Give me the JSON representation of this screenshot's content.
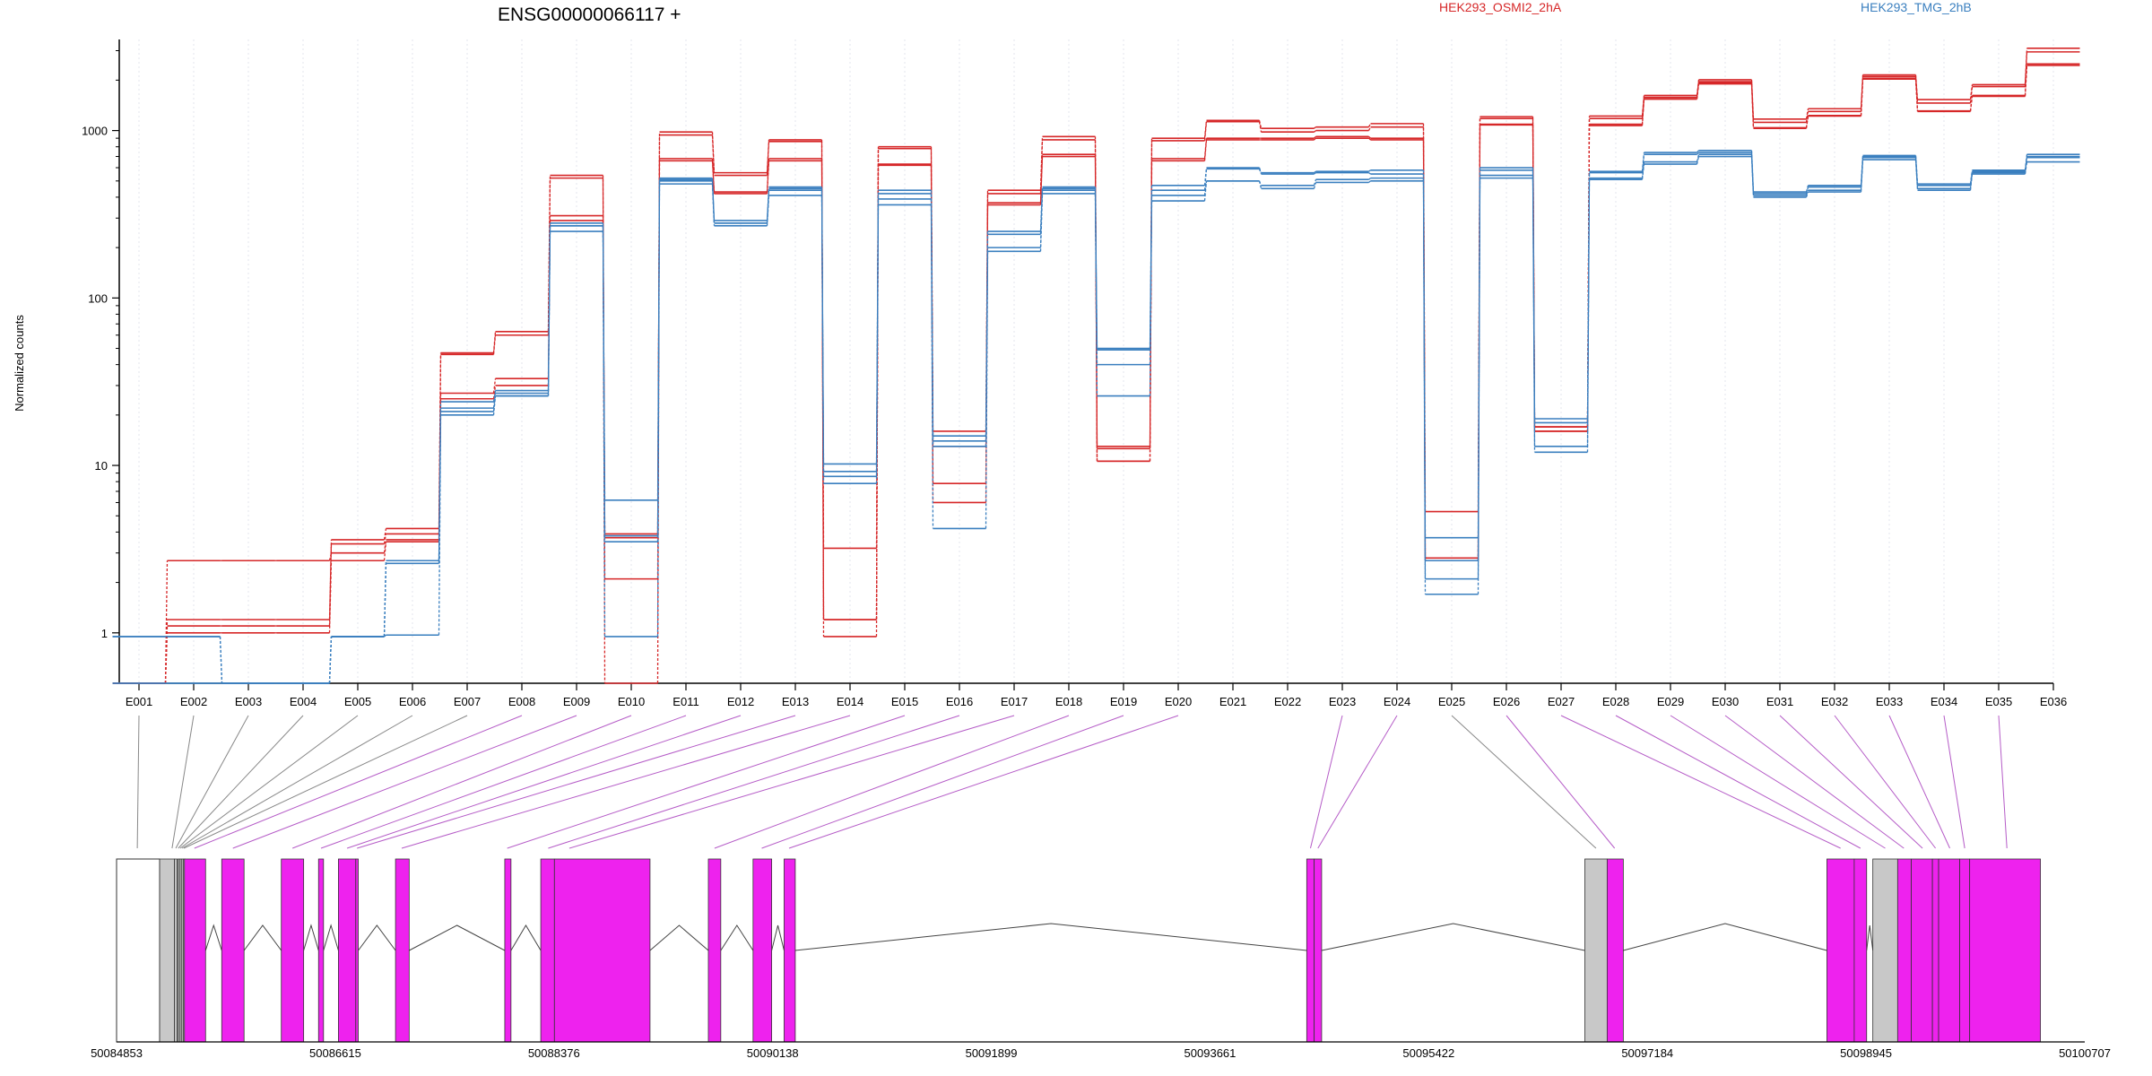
{
  "chart_data": {
    "type": "line",
    "title": "ENSG00000066117 +",
    "ylabel": "Normalized counts",
    "xlabel": "",
    "yscale": "log",
    "ylim": [
      0.5,
      3500
    ],
    "yticks": [
      1,
      10,
      100,
      1000
    ],
    "ytick_labels": [
      "1",
      "10",
      "100",
      "1000"
    ],
    "grid": "vertical dotted lines at each exon",
    "legend_placement": "top",
    "colors": {
      "HEK293_OSMI2_2hA": "#d62728",
      "HEK293_TMG_2hB": "#3a7fbf",
      "exon_counted": "#ee22ee",
      "exon_other": "#c8c8c8",
      "flank": "#ffffff"
    },
    "categories": [
      "E001",
      "E002",
      "E003",
      "E004",
      "E005",
      "E006",
      "E007",
      "E008",
      "E009",
      "E010",
      "E011",
      "E012",
      "E013",
      "E014",
      "E015",
      "E016",
      "E017",
      "E018",
      "E019",
      "E020",
      "E021",
      "E022",
      "E023",
      "E024",
      "E025",
      "E026",
      "E027",
      "E028",
      "E029",
      "E030",
      "E031",
      "E032",
      "E033",
      "E034",
      "E035",
      "E036"
    ],
    "series": [
      {
        "name": "HEK293_OSMI2_2hA",
        "group": "HEK293_OSMI2_2hA",
        "values": [
          0.5,
          1.1,
          1.1,
          1.1,
          3.6,
          4.2,
          47,
          63,
          540,
          0.5,
          980,
          560,
          880,
          1.2,
          800,
          16,
          440,
          920,
          13,
          900,
          1150,
          1030,
          1050,
          1100,
          5.3,
          1210,
          17,
          1220,
          1620,
          2010,
          1170,
          1350,
          2150,
          1530,
          1880,
          3100
        ]
      },
      {
        "name": "HEK293_OSMI2_2hA",
        "group": "HEK293_OSMI2_2hA",
        "values": [
          0.5,
          1.2,
          1.2,
          1.2,
          3.4,
          3.9,
          46,
          60,
          520,
          2.1,
          940,
          540,
          860,
          0.95,
          780,
          7.8,
          420,
          880,
          10.6,
          870,
          1130,
          980,
          1000,
          1050,
          2.7,
          1180,
          16,
          1180,
          1580,
          1960,
          1120,
          1300,
          2100,
          1460,
          1830,
          2950
        ]
      },
      {
        "name": "HEK293_OSMI2_2hA",
        "group": "HEK293_OSMI2_2hA",
        "values": [
          0.5,
          2.7,
          2.7,
          2.7,
          3.0,
          3.6,
          27,
          33,
          310,
          3.7,
          680,
          430,
          680,
          3.2,
          630,
          13,
          370,
          720,
          10.6,
          680,
          900,
          900,
          920,
          900,
          2.7,
          1090,
          17,
          1090,
          1550,
          1930,
          1040,
          1230,
          2050,
          1310,
          1620,
          2500
        ]
      },
      {
        "name": "HEK293_OSMI2_2hA",
        "group": "HEK293_OSMI2_2hA",
        "values": [
          0.5,
          1.0,
          1.0,
          1.0,
          2.7,
          3.5,
          25,
          30,
          290,
          3.9,
          660,
          420,
          660,
          1.2,
          620,
          6.0,
          360,
          700,
          12.6,
          660,
          880,
          880,
          900,
          880,
          2.8,
          1080,
          16,
          1070,
          1540,
          1900,
          1030,
          1220,
          2030,
          1300,
          1600,
          2450
        ]
      },
      {
        "name": "HEK293_TMG_2hB",
        "group": "HEK293_TMG_2hB",
        "values": [
          0.95,
          0.95,
          0.5,
          0.5,
          0.95,
          0.97,
          20,
          26,
          250,
          6.2,
          480,
          270,
          410,
          7.8,
          360,
          4.2,
          190,
          420,
          26,
          380,
          500,
          450,
          490,
          500,
          1.7,
          520,
          12,
          510,
          630,
          700,
          400,
          430,
          670,
          440,
          550,
          650
        ]
      },
      {
        "name": "HEK293_TMG_2hB",
        "group": "HEK293_TMG_2hB",
        "values": [
          0.5,
          0.5,
          0.5,
          0.5,
          0.95,
          2.7,
          22,
          27,
          270,
          0.95,
          500,
          290,
          440,
          8.6,
          390,
          13,
          200,
          440,
          40,
          410,
          500,
          470,
          510,
          520,
          2.7,
          540,
          13,
          520,
          650,
          720,
          410,
          440,
          690,
          450,
          560,
          690
        ]
      },
      {
        "name": "HEK293_TMG_2hB",
        "group": "HEK293_TMG_2hB",
        "values": [
          0.95,
          0.95,
          0.5,
          0.5,
          0.95,
          2.6,
          24,
          28,
          280,
          3.5,
          520,
          280,
          460,
          9.2,
          420,
          14,
          240,
          450,
          50,
          440,
          590,
          550,
          560,
          550,
          2.1,
          580,
          19,
          560,
          720,
          740,
          420,
          460,
          700,
          470,
          570,
          700
        ]
      },
      {
        "name": "HEK293_TMG_2hB",
        "group": "HEK293_TMG_2hB",
        "values": [
          0.5,
          0.5,
          0.5,
          0.5,
          0.95,
          2.7,
          21,
          26,
          270,
          3.8,
          510,
          280,
          450,
          10.2,
          440,
          15,
          250,
          460,
          49,
          470,
          600,
          560,
          570,
          580,
          3.7,
          600,
          18,
          570,
          740,
          760,
          430,
          470,
          710,
          480,
          580,
          720
        ]
      }
    ],
    "gene_model": {
      "coordinates": [
        "50084853",
        "50086615",
        "50088376",
        "50090138",
        "50091899",
        "50093661",
        "50095422",
        "50097184",
        "50098945",
        "50100707"
      ],
      "coordinate_values": [
        50084853,
        50086615,
        50088376,
        50090138,
        50091899,
        50093661,
        50095422,
        50097184,
        50098945,
        50100707
      ],
      "flank_start": 50084853,
      "flank_end": 50085200,
      "exons": [
        {
          "start": 50085200,
          "end": 50085320,
          "kind": "other"
        },
        {
          "start": 50085320,
          "end": 50085340,
          "kind": "other"
        },
        {
          "start": 50085345,
          "end": 50085355,
          "kind": "other"
        },
        {
          "start": 50085360,
          "end": 50085370,
          "kind": "other"
        },
        {
          "start": 50085375,
          "end": 50085385,
          "kind": "other"
        },
        {
          "start": 50085390,
          "end": 50085400,
          "kind": "other"
        },
        {
          "start": 50085400,
          "end": 50085570,
          "kind": "counted"
        },
        {
          "start": 50085700,
          "end": 50085880,
          "kind": "counted"
        },
        {
          "start": 50086180,
          "end": 50086360,
          "kind": "counted"
        },
        {
          "start": 50086480,
          "end": 50086520,
          "kind": "counted"
        },
        {
          "start": 50086640,
          "end": 50086780,
          "kind": "counted"
        },
        {
          "start": 50086780,
          "end": 50086800,
          "kind": "counted"
        },
        {
          "start": 50087100,
          "end": 50087210,
          "kind": "counted"
        },
        {
          "start": 50087980,
          "end": 50088030,
          "kind": "counted"
        },
        {
          "start": 50088270,
          "end": 50088380,
          "kind": "counted"
        },
        {
          "start": 50088380,
          "end": 50089150,
          "kind": "counted"
        },
        {
          "start": 50089620,
          "end": 50089720,
          "kind": "counted"
        },
        {
          "start": 50089980,
          "end": 50090130,
          "kind": "counted"
        },
        {
          "start": 50090230,
          "end": 50090320,
          "kind": "counted"
        },
        {
          "start": 50094440,
          "end": 50094500,
          "kind": "counted"
        },
        {
          "start": 50094500,
          "end": 50094560,
          "kind": "counted"
        },
        {
          "start": 50096680,
          "end": 50096860,
          "kind": "other"
        },
        {
          "start": 50096860,
          "end": 50096990,
          "kind": "counted"
        },
        {
          "start": 50098630,
          "end": 50098850,
          "kind": "counted"
        },
        {
          "start": 50098850,
          "end": 50098950,
          "kind": "counted"
        },
        {
          "start": 50099000,
          "end": 50099200,
          "kind": "other"
        },
        {
          "start": 50099200,
          "end": 50099310,
          "kind": "counted"
        },
        {
          "start": 50099310,
          "end": 50099480,
          "kind": "counted"
        },
        {
          "start": 50099480,
          "end": 50099530,
          "kind": "counted"
        },
        {
          "start": 50099530,
          "end": 50099700,
          "kind": "counted"
        },
        {
          "start": 50099700,
          "end": 50099780,
          "kind": "counted"
        },
        {
          "start": 50099780,
          "end": 50100350,
          "kind": "counted"
        }
      ],
      "bin_positions": [
        50085020,
        50085300,
        50085330,
        50085350,
        50085365,
        50085380,
        50085395,
        50085480,
        50085790,
        50086270,
        50086500,
        50086710,
        50086790,
        50087150,
        50088000,
        50088330,
        50088500,
        50089670,
        50090050,
        50090270,
        50094470,
        50094530,
        50096770,
        50096920,
        50098740,
        50098900,
        50099100,
        50099250,
        50099400,
        50099505,
        50099620,
        50099740,
        50100080
      ],
      "bin_link_exons": [
        "E001",
        "E002",
        "E003",
        "E004",
        "E005",
        "E006",
        "E007",
        "E008",
        "E009",
        "E010",
        "E011",
        "E012",
        "E013",
        "E014",
        "E015",
        "E016",
        "E017",
        "E018",
        "E019",
        "E020",
        "E023",
        "E024",
        "E025",
        "E026",
        "E027",
        "E028",
        "E029",
        "E030",
        "E031",
        "E032",
        "E033",
        "E034",
        "E035"
      ],
      "bin_link_counted": [
        false,
        false,
        false,
        false,
        false,
        false,
        false,
        true,
        true,
        true,
        true,
        true,
        true,
        true,
        true,
        true,
        true,
        true,
        true,
        true,
        true,
        true,
        false,
        true,
        true,
        true,
        true,
        true,
        true,
        true,
        true,
        true,
        true
      ]
    }
  }
}
